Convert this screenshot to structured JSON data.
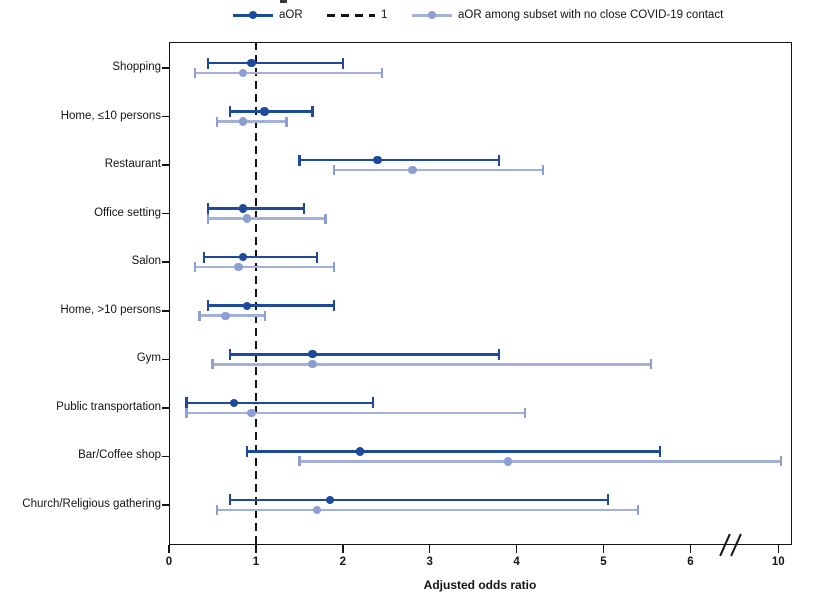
{
  "colors": {
    "aor_dark": "#1e4a9b",
    "subset_dot": "#8d9ed2",
    "subset_line": "#a3b0da",
    "axis": "#141414"
  },
  "legend": {
    "aor_label": "aOR",
    "reference_label": "1",
    "subset_label": "aOR among subset with no close COVID-19 contact"
  },
  "chart_data": {
    "type": "forest",
    "xlabel": "Adjusted odds ratio",
    "x_ticks": [
      0,
      1,
      2,
      3,
      4,
      5,
      6,
      10
    ],
    "x_axis_break": {
      "after": 6,
      "before": 10
    },
    "reference_line_x": 1,
    "grid": false,
    "legend_position": "top",
    "categories": [
      "Shopping",
      "Home, ≤10 persons",
      "Restaurant",
      "Office setting",
      "Salon",
      "Home, >10 persons",
      "Gym",
      "Public transportation",
      "Bar/Coffee shop",
      "Church/Religious gathering"
    ],
    "series": [
      {
        "name": "aOR",
        "color_key": "aor_dark",
        "or": [
          0.95,
          1.1,
          2.4,
          0.85,
          0.85,
          0.9,
          1.65,
          0.75,
          2.2,
          1.85
        ],
        "lo": [
          0.45,
          0.7,
          1.5,
          0.45,
          0.4,
          0.45,
          0.7,
          0.2,
          0.9,
          0.7
        ],
        "hi": [
          2.0,
          1.65,
          3.8,
          1.55,
          1.7,
          1.9,
          3.8,
          2.35,
          5.65,
          5.05
        ]
      },
      {
        "name": "aOR among subset with no close COVID-19 contact",
        "color_key": "subset_dot",
        "or": [
          0.85,
          0.85,
          2.8,
          0.9,
          0.8,
          0.65,
          1.65,
          0.95,
          3.9,
          1.7
        ],
        "lo": [
          0.3,
          0.55,
          1.9,
          0.45,
          0.3,
          0.35,
          0.5,
          0.2,
          1.5,
          0.55
        ],
        "hi": [
          2.45,
          1.35,
          4.3,
          1.8,
          1.9,
          1.1,
          5.55,
          4.1,
          10.2,
          5.4
        ]
      }
    ]
  }
}
